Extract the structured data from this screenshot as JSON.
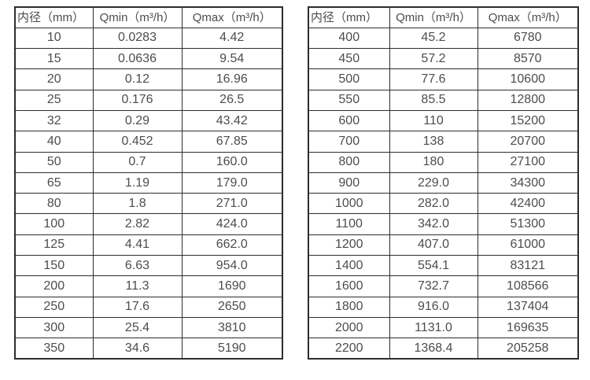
{
  "colors": {
    "background": "#ffffff",
    "border": "#2d2d2d",
    "text": "#4d4d4d"
  },
  "columns": [
    "内径（mm）",
    "Qmin（m³/h）",
    "Qmax（m³/h）"
  ],
  "left_table": {
    "rows": [
      [
        "10",
        "0.0283",
        "4.42"
      ],
      [
        "15",
        "0.0636",
        "9.54"
      ],
      [
        "20",
        "0.12",
        "16.96"
      ],
      [
        "25",
        "0.176",
        "26.5"
      ],
      [
        "32",
        "0.29",
        "43.42"
      ],
      [
        "40",
        "0.452",
        "67.85"
      ],
      [
        "50",
        "0.7",
        "160.0"
      ],
      [
        "65",
        "1.19",
        "179.0"
      ],
      [
        "80",
        "1.8",
        "271.0"
      ],
      [
        "100",
        "2.82",
        "424.0"
      ],
      [
        "125",
        "4.41",
        "662.0"
      ],
      [
        "150",
        "6.63",
        "954.0"
      ],
      [
        "200",
        "11.3",
        "1690"
      ],
      [
        "250",
        "17.6",
        "2650"
      ],
      [
        "300",
        "25.4",
        "3810"
      ],
      [
        "350",
        "34.6",
        "5190"
      ]
    ]
  },
  "right_table": {
    "rows": [
      [
        "400",
        "45.2",
        "6780"
      ],
      [
        "450",
        "57.2",
        "8570"
      ],
      [
        "500",
        "77.6",
        "10600"
      ],
      [
        "550",
        "85.5",
        "12800"
      ],
      [
        "600",
        "110",
        "15200"
      ],
      [
        "700",
        "138",
        "20700"
      ],
      [
        "800",
        "180",
        "27100"
      ],
      [
        "900",
        "229.0",
        "34300"
      ],
      [
        "1000",
        "282.0",
        "42400"
      ],
      [
        "1100",
        "342.0",
        "51300"
      ],
      [
        "1200",
        "407.0",
        "61000"
      ],
      [
        "1400",
        "554.1",
        "83121"
      ],
      [
        "1600",
        "732.7",
        "108566"
      ],
      [
        "1800",
        "916.0",
        "137404"
      ],
      [
        "2000",
        "1131.0",
        "169635"
      ],
      [
        "2200",
        "1368.4",
        "205258"
      ]
    ]
  },
  "chart_data": {
    "type": "table",
    "title": "",
    "columns": [
      "内径（mm）",
      "Qmin（m³/h）",
      "Qmax（m³/h）"
    ],
    "tables": [
      {
        "rows": [
          [
            10,
            0.0283,
            4.42
          ],
          [
            15,
            0.0636,
            9.54
          ],
          [
            20,
            0.12,
            16.96
          ],
          [
            25,
            0.176,
            26.5
          ],
          [
            32,
            0.29,
            43.42
          ],
          [
            40,
            0.452,
            67.85
          ],
          [
            50,
            0.7,
            160.0
          ],
          [
            65,
            1.19,
            179.0
          ],
          [
            80,
            1.8,
            271.0
          ],
          [
            100,
            2.82,
            424.0
          ],
          [
            125,
            4.41,
            662.0
          ],
          [
            150,
            6.63,
            954.0
          ],
          [
            200,
            11.3,
            1690
          ],
          [
            250,
            17.6,
            2650
          ],
          [
            300,
            25.4,
            3810
          ],
          [
            350,
            34.6,
            5190
          ]
        ]
      },
      {
        "rows": [
          [
            400,
            45.2,
            6780
          ],
          [
            450,
            57.2,
            8570
          ],
          [
            500,
            77.6,
            10600
          ],
          [
            550,
            85.5,
            12800
          ],
          [
            600,
            110,
            15200
          ],
          [
            700,
            138,
            20700
          ],
          [
            800,
            180,
            27100
          ],
          [
            900,
            229.0,
            34300
          ],
          [
            1000,
            282.0,
            42400
          ],
          [
            1100,
            342.0,
            51300
          ],
          [
            1200,
            407.0,
            61000
          ],
          [
            1400,
            554.1,
            83121
          ],
          [
            1600,
            732.7,
            108566
          ],
          [
            1800,
            916.0,
            137404
          ],
          [
            2000,
            1131.0,
            169635
          ],
          [
            2200,
            1368.4,
            205258
          ]
        ]
      }
    ]
  }
}
